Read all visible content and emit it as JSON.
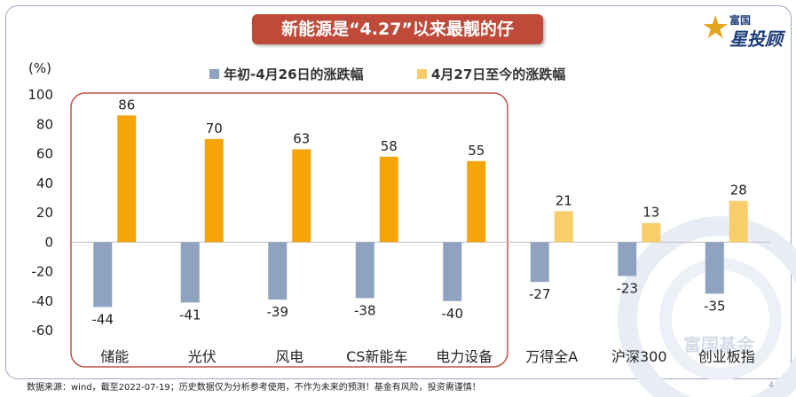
{
  "header": {
    "title": "新能源是“4.27”以来最靓的仔",
    "logo_top": "富国",
    "logo_main": "星投顾",
    "watermark": "富国基金"
  },
  "chart_data": {
    "type": "bar",
    "title": "新能源是“4.27”以来最靓的仔",
    "ylabel": "(%)",
    "xlabel": "",
    "ylim": [
      -60,
      100
    ],
    "yticks": [
      -60,
      -40,
      -20,
      0,
      20,
      40,
      60,
      80,
      100
    ],
    "grid": false,
    "legend_position": "top-center",
    "categories": [
      "储能",
      "光伏",
      "风电",
      "CS新能车",
      "电力设备",
      "万得全A",
      "沪深300",
      "创业板指"
    ],
    "series": [
      {
        "name": "年初-4月26日的涨跌幅",
        "color": "#8fa3c1",
        "values": [
          -44,
          -41,
          -39,
          -38,
          -40,
          -27,
          -23,
          -35
        ]
      },
      {
        "name": "4月27日至今的涨跌幅",
        "color_highlight": "#f5a40a",
        "color": "#f8cd6a",
        "values": [
          86,
          70,
          63,
          58,
          55,
          21,
          13,
          28
        ]
      }
    ],
    "highlight_categories": [
      "储能",
      "光伏",
      "风电",
      "CS新能车",
      "电力设备"
    ],
    "annotations": [
      "highlight box around 新能源 categories"
    ]
  },
  "footer": {
    "note": "数据来源：wind，截至2022-07-19；历史数据仅为分析参考使用，不作为未来的预测！基金有风险，投资需谨慎！",
    "page": "4"
  },
  "colors": {
    "title_bg": "#bf4a39",
    "highlight_border": "#c0504d",
    "frame_border": "#9aa9c2"
  }
}
